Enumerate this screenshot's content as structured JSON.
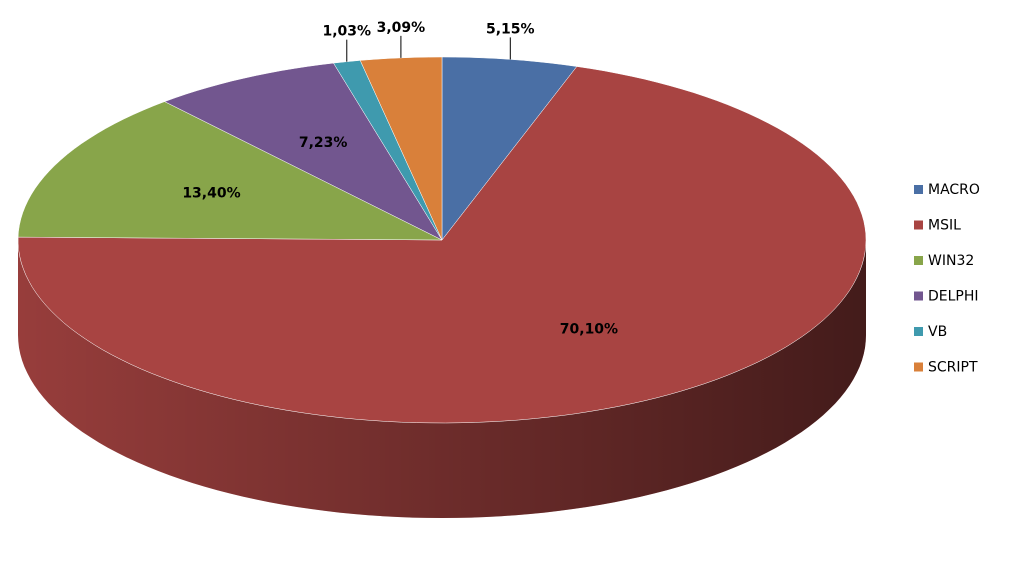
{
  "chart_data": {
    "type": "pie",
    "categories": [
      "MACRO",
      "MSIL",
      "WIN32",
      "DELPHI",
      "VB",
      "SCRIPT"
    ],
    "values": [
      5.15,
      70.1,
      13.4,
      7.23,
      1.03,
      3.09
    ],
    "value_labels": [
      "5,15%",
      "70,10%",
      "13,40%",
      "7,23%",
      "1,03%",
      "3,09%"
    ],
    "colors": [
      "#4a6fa5",
      "#a84442",
      "#88a54a",
      "#72568f",
      "#3f9aae",
      "#d9803a"
    ],
    "legend": "right"
  }
}
